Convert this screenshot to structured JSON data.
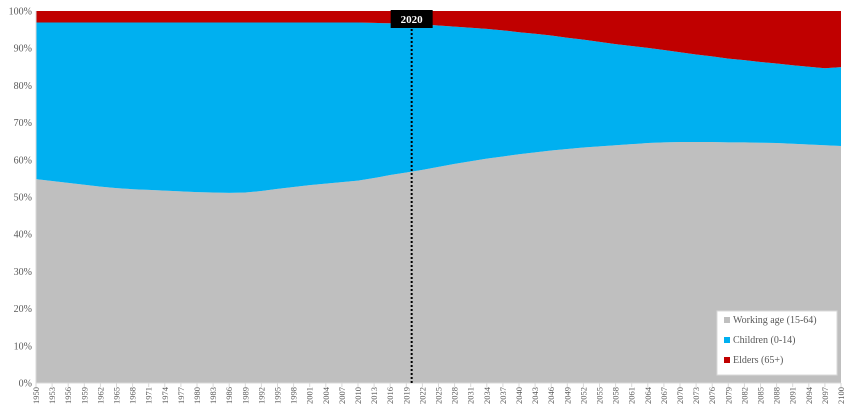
{
  "chart_data": {
    "type": "area",
    "stacked": true,
    "percent": true,
    "grid": false,
    "ylim": [
      0,
      100
    ],
    "y_ticks": [
      "0%",
      "10%",
      "20%",
      "30%",
      "40%",
      "50%",
      "60%",
      "70%",
      "80%",
      "90%",
      "100%"
    ],
    "y_tick_values": [
      0,
      10,
      20,
      30,
      40,
      50,
      60,
      70,
      80,
      90,
      100
    ],
    "x": [
      1950,
      1953,
      1956,
      1959,
      1962,
      1965,
      1968,
      1971,
      1974,
      1977,
      1980,
      1983,
      1986,
      1989,
      1992,
      1995,
      1998,
      2001,
      2004,
      2007,
      2010,
      2013,
      2016,
      2019,
      2022,
      2025,
      2028,
      2031,
      2034,
      2037,
      2040,
      2043,
      2046,
      2049,
      2052,
      2055,
      2058,
      2061,
      2064,
      2067,
      2070,
      2073,
      2076,
      2079,
      2082,
      2085,
      2088,
      2091,
      2094,
      2097,
      2100
    ],
    "x_tick_labels": [
      "1950",
      "1953",
      "1956",
      "1959",
      "1962",
      "1965",
      "1968",
      "1971",
      "1974",
      "1977",
      "1980",
      "1983",
      "1986",
      "1989",
      "1992",
      "1995",
      "1998",
      "2001",
      "2004",
      "2007",
      "2010",
      "2013",
      "2016",
      "2019",
      "2022",
      "2025",
      "2028",
      "2031",
      "2034",
      "2037",
      "2040",
      "2043",
      "2046",
      "2049",
      "2052",
      "2055",
      "2058",
      "2061",
      "2064",
      "2067",
      "2070",
      "2073",
      "2076",
      "2079",
      "2082",
      "2085",
      "2088",
      "2091",
      "2094",
      "2097",
      "2100"
    ],
    "series": [
      {
        "name": "Working age (15-64)",
        "color": "#bfbfbf",
        "values": [
          54.8,
          54.3,
          53.8,
          53.3,
          52.8,
          52.4,
          52.1,
          51.9,
          51.7,
          51.5,
          51.3,
          51.2,
          51.1,
          51.2,
          51.6,
          52.2,
          52.7,
          53.2,
          53.6,
          54.0,
          54.4,
          55.1,
          55.9,
          56.6,
          57.3,
          58.1,
          58.9,
          59.6,
          60.3,
          60.9,
          61.5,
          62.0,
          62.5,
          62.9,
          63.3,
          63.6,
          63.9,
          64.2,
          64.5,
          64.7,
          64.8,
          64.8,
          64.8,
          64.7,
          64.7,
          64.6,
          64.5,
          64.3,
          64.1,
          63.9,
          63.7
        ]
      },
      {
        "name": "Children (0-14)",
        "color": "#00b0f0",
        "values": [
          42.1,
          42.6,
          43.1,
          43.6,
          44.1,
          44.5,
          44.8,
          45.0,
          45.2,
          45.4,
          45.6,
          45.7,
          45.8,
          45.7,
          45.3,
          44.7,
          44.2,
          43.7,
          43.3,
          42.9,
          42.5,
          41.7,
          40.8,
          40.0,
          39.1,
          38.0,
          36.9,
          35.9,
          34.9,
          33.9,
          32.8,
          31.9,
          30.9,
          29.9,
          29.0,
          28.1,
          27.2,
          26.4,
          25.6,
          24.8,
          24.1,
          23.5,
          23.0,
          22.5,
          22.1,
          21.7,
          21.4,
          21.1,
          20.9,
          20.7,
          21.2
        ]
      },
      {
        "name": "Elders (65+)",
        "color": "#c00000",
        "values": [
          3.1,
          3.1,
          3.1,
          3.1,
          3.1,
          3.1,
          3.1,
          3.1,
          3.1,
          3.1,
          3.1,
          3.1,
          3.1,
          3.1,
          3.1,
          3.1,
          3.1,
          3.1,
          3.1,
          3.1,
          3.1,
          3.2,
          3.3,
          3.4,
          3.6,
          3.9,
          4.2,
          4.5,
          4.8,
          5.2,
          5.7,
          6.1,
          6.6,
          7.2,
          7.7,
          8.3,
          8.9,
          9.4,
          9.9,
          10.5,
          11.1,
          11.7,
          12.2,
          12.8,
          13.2,
          13.7,
          14.1,
          14.6,
          15.0,
          15.4,
          15.1
        ]
      }
    ],
    "legend": {
      "position": "bottom-right",
      "items": [
        "Working age (15-64)",
        "Children (0-14)",
        "Elders (65+)"
      ]
    },
    "annotation": {
      "label": "2020",
      "x": 2020,
      "style": "dotted-vertical-line"
    }
  }
}
